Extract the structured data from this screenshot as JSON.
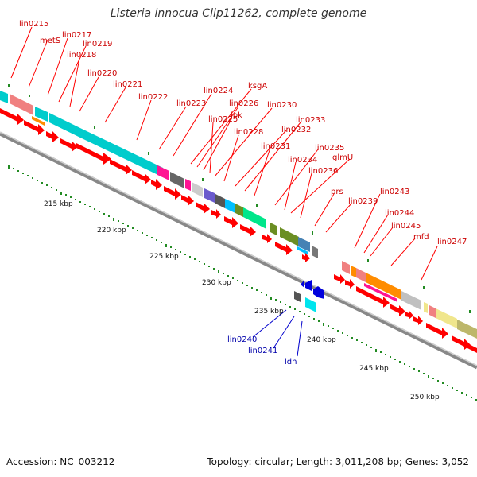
{
  "title": "Listeria innocua Clip11262, complete genome",
  "footer": {
    "accession": "Accession: NC_003212",
    "summary": "Topology: circular; Length: 3,011,208 bp; Genes: 3,052"
  },
  "colors": {
    "cds_arrow": "#ff0000",
    "reverse_arrow": "#0000dd",
    "tick": "#228b22",
    "label_upper": "#cc0000",
    "label_lower": "#0000aa",
    "backbone": "#999999"
  },
  "scale_labels": [
    "215 kbp",
    "220 kbp",
    "225 kbp",
    "230 kbp",
    "235 kbp",
    "240 kbp",
    "245 kbp",
    "250 kbp"
  ],
  "upper_labels": [
    "lin0215",
    "metS",
    "lin0217",
    "lin0219",
    "lin0218",
    "lin0220",
    "lin0221",
    "lin0222",
    "lin0223",
    "lin0224",
    "ksgA",
    "lin0226",
    "ipk",
    "lin0225",
    "lin0230",
    "lin0228",
    "lin0232",
    "lin0233",
    "lin0231",
    "lin0235",
    "lin0234",
    "glmU",
    "lin0236",
    "prs",
    "lin0239",
    "lin0243",
    "lin0244",
    "lin0245",
    "mfd",
    "lin0247"
  ],
  "lower_labels": [
    "lin0240",
    "lin0241",
    "ldh"
  ]
}
